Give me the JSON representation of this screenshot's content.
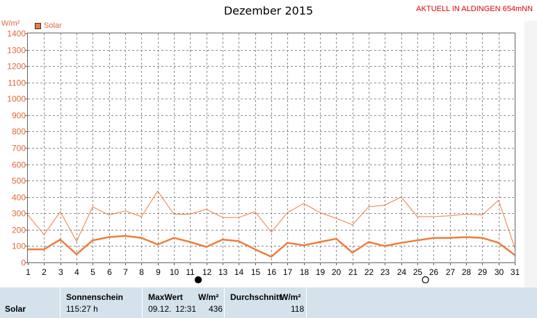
{
  "header": {
    "title": "Dezember 2015",
    "station": "AKTUELL IN ALDINGEN 654mNN",
    "unit": "W/m²"
  },
  "legend": {
    "label": "Solar",
    "color": "#f07a3c"
  },
  "colors": {
    "grid": "#8a8a8a",
    "axis_text": "#e0683c",
    "series": "#f07a3c"
  },
  "chart_data": {
    "type": "line",
    "title": "Dezember 2015",
    "ylabel": "W/m²",
    "x": [
      1,
      2,
      3,
      4,
      5,
      6,
      7,
      8,
      9,
      10,
      11,
      12,
      13,
      14,
      15,
      16,
      17,
      18,
      19,
      20,
      21,
      22,
      23,
      24,
      25,
      26,
      27,
      28,
      29,
      30,
      31
    ],
    "ylim": [
      0,
      1400
    ],
    "yticks": [
      0,
      100,
      200,
      300,
      400,
      500,
      600,
      700,
      800,
      900,
      1000,
      1100,
      1200,
      1300,
      1400
    ],
    "grid": true,
    "legend_position": "top-left",
    "series": [
      {
        "name": "Solar",
        "style": "max",
        "values": [
          290,
          170,
          310,
          130,
          340,
          290,
          315,
          280,
          436,
          295,
          295,
          325,
          275,
          275,
          310,
          185,
          305,
          360,
          305,
          270,
          230,
          340,
          350,
          400,
          280,
          280,
          285,
          295,
          290,
          380,
          90
        ]
      },
      {
        "name": "Solar",
        "style": "average",
        "values": [
          80,
          80,
          140,
          50,
          135,
          155,
          162,
          150,
          110,
          150,
          125,
          95,
          140,
          130,
          80,
          35,
          120,
          105,
          125,
          145,
          60,
          125,
          100,
          120,
          135,
          150,
          150,
          155,
          150,
          120,
          45
        ]
      }
    ],
    "markers": [
      {
        "day": 11.5,
        "symbol": "full-moon-dot",
        "label": "●"
      },
      {
        "day": 25.5,
        "symbol": "new-moon-ring",
        "label": "○"
      }
    ]
  },
  "table": {
    "row_label": "Solar",
    "columns": [
      {
        "header": "Sonnenschein",
        "value": "115:27 h"
      },
      {
        "header": "MaxWert",
        "unit_header": "W/m²",
        "date": "09.12.",
        "time": "12:31",
        "value": "436"
      },
      {
        "header": "Durchschnitt",
        "unit_header": "W/m²",
        "value": "118"
      }
    ]
  }
}
